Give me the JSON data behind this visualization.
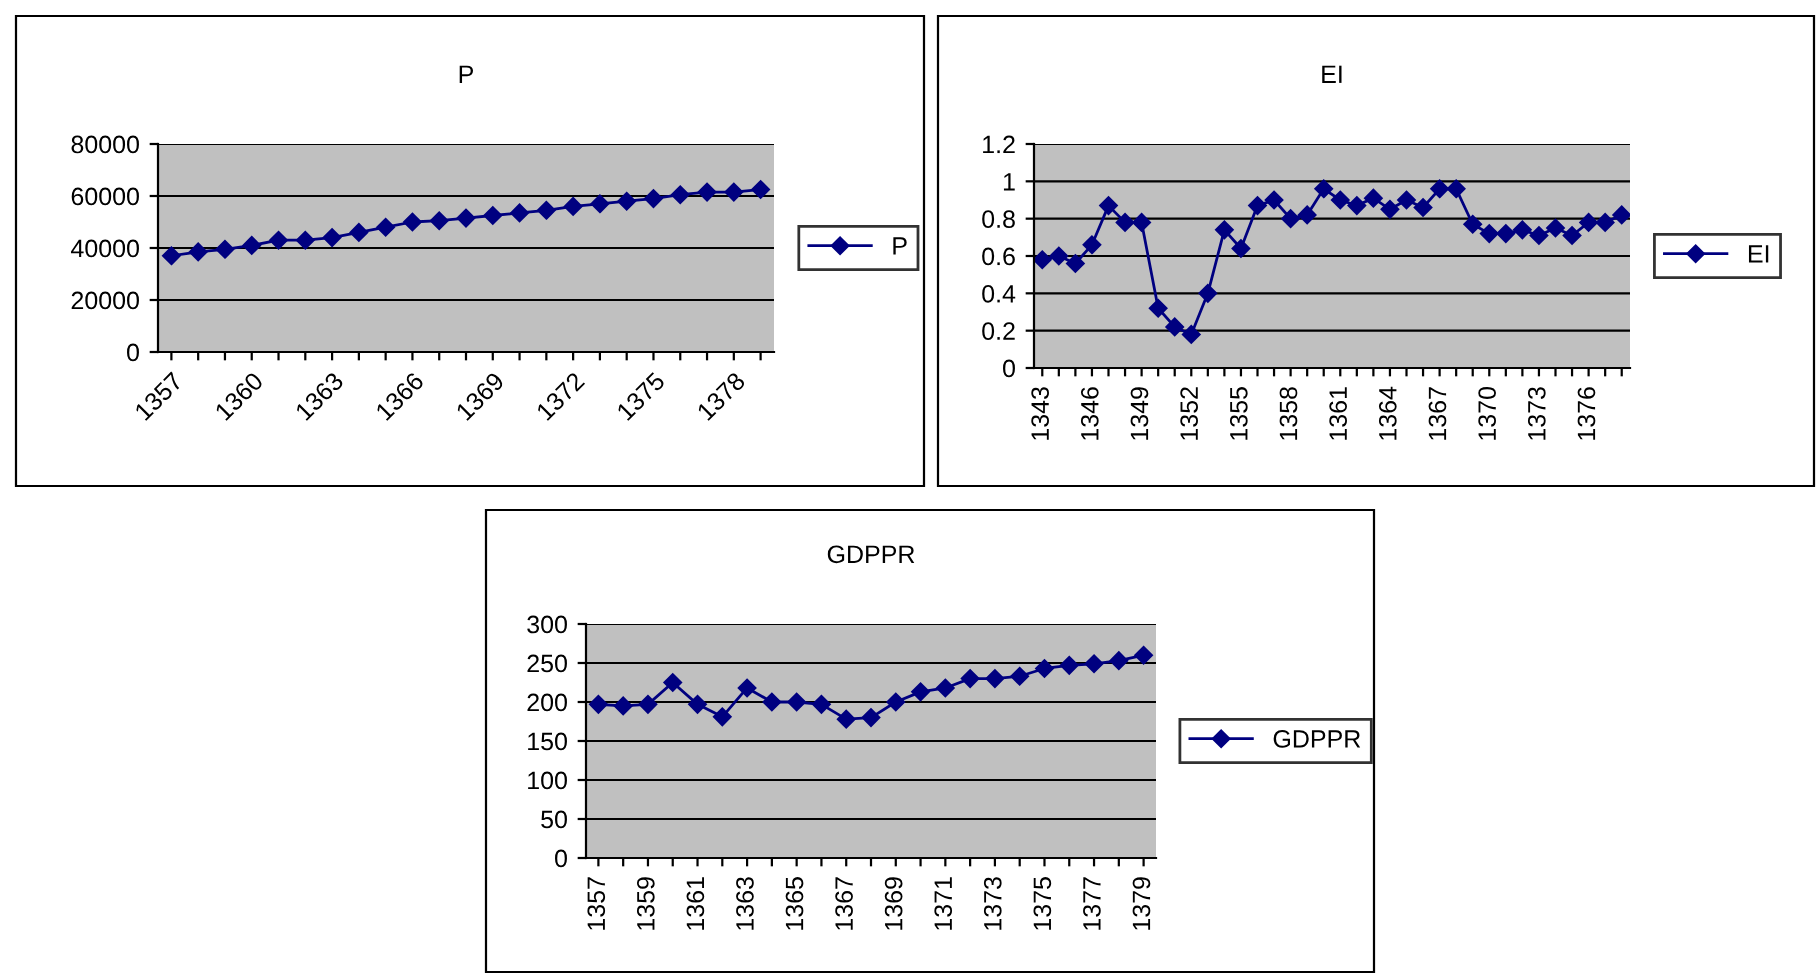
{
  "chart_data": [
    {
      "type": "line",
      "title": "P",
      "categories": [
        "1357",
        null,
        null,
        "1360",
        null,
        null,
        "1363",
        null,
        null,
        "1366",
        null,
        null,
        "1369",
        null,
        null,
        "1372",
        null,
        null,
        "1375",
        null,
        null,
        "1378",
        null
      ],
      "series": [
        {
          "name": "P",
          "color": "#000080",
          "values": [
            37000,
            38500,
            39500,
            41000,
            43000,
            43000,
            44000,
            46000,
            48000,
            50000,
            50500,
            51500,
            52500,
            53500,
            54500,
            56000,
            57000,
            58000,
            59000,
            60500,
            61500,
            61500,
            62500
          ]
        }
      ],
      "ylim": [
        0,
        80000
      ],
      "yticks": [
        0,
        20000,
        40000,
        60000,
        80000
      ],
      "grid": "y",
      "legend": "right",
      "marker": "diamond",
      "line_style": "solid"
    },
    {
      "type": "line",
      "title": "EI",
      "categories": [
        "1343",
        null,
        null,
        "1346",
        null,
        null,
        "1349",
        null,
        null,
        "1352",
        null,
        null,
        "1355",
        null,
        null,
        "1358",
        null,
        null,
        "1361",
        null,
        null,
        "1364",
        null,
        null,
        "1367",
        null,
        null,
        "1370",
        null,
        null,
        "1373",
        null,
        null,
        "1376",
        null,
        null
      ],
      "series": [
        {
          "name": "EI",
          "color": "#000080",
          "values": [
            0.58,
            0.6,
            0.56,
            0.66,
            0.87,
            0.78,
            0.78,
            0.32,
            0.22,
            0.18,
            0.4,
            0.74,
            0.64,
            0.87,
            0.9,
            0.8,
            0.82,
            0.96,
            0.9,
            0.87,
            0.91,
            0.85,
            0.9,
            0.86,
            0.96,
            0.96,
            0.77,
            0.72,
            0.72,
            0.74,
            0.71,
            0.75,
            0.71,
            0.78,
            0.78,
            0.82
          ]
        }
      ],
      "ylim": [
        0,
        1.2
      ],
      "yticks": [
        0,
        0.2,
        0.4,
        0.6,
        0.8,
        1,
        1.2
      ],
      "grid": "y",
      "legend": "right",
      "marker": "diamond",
      "line_style": "solid"
    },
    {
      "type": "line",
      "title": "GDPPR",
      "categories": [
        "1357",
        null,
        "1359",
        null,
        "1361",
        null,
        "1363",
        null,
        "1365",
        null,
        "1367",
        null,
        "1369",
        null,
        "1371",
        null,
        "1373",
        null,
        "1375",
        null,
        "1377",
        null,
        "1379"
      ],
      "series": [
        {
          "name": "GDPPR",
          "color": "#000080",
          "values": [
            197,
            195,
            197,
            225,
            197,
            181,
            218,
            200,
            200,
            197,
            178,
            180,
            200,
            213,
            218,
            230,
            230,
            233,
            243,
            247,
            249,
            253,
            260
          ]
        }
      ],
      "ylim": [
        0,
        300
      ],
      "yticks": [
        0,
        50,
        100,
        150,
        200,
        250,
        300
      ],
      "grid": "y",
      "legend": "right",
      "marker": "diamond",
      "line_style": "solid"
    }
  ]
}
